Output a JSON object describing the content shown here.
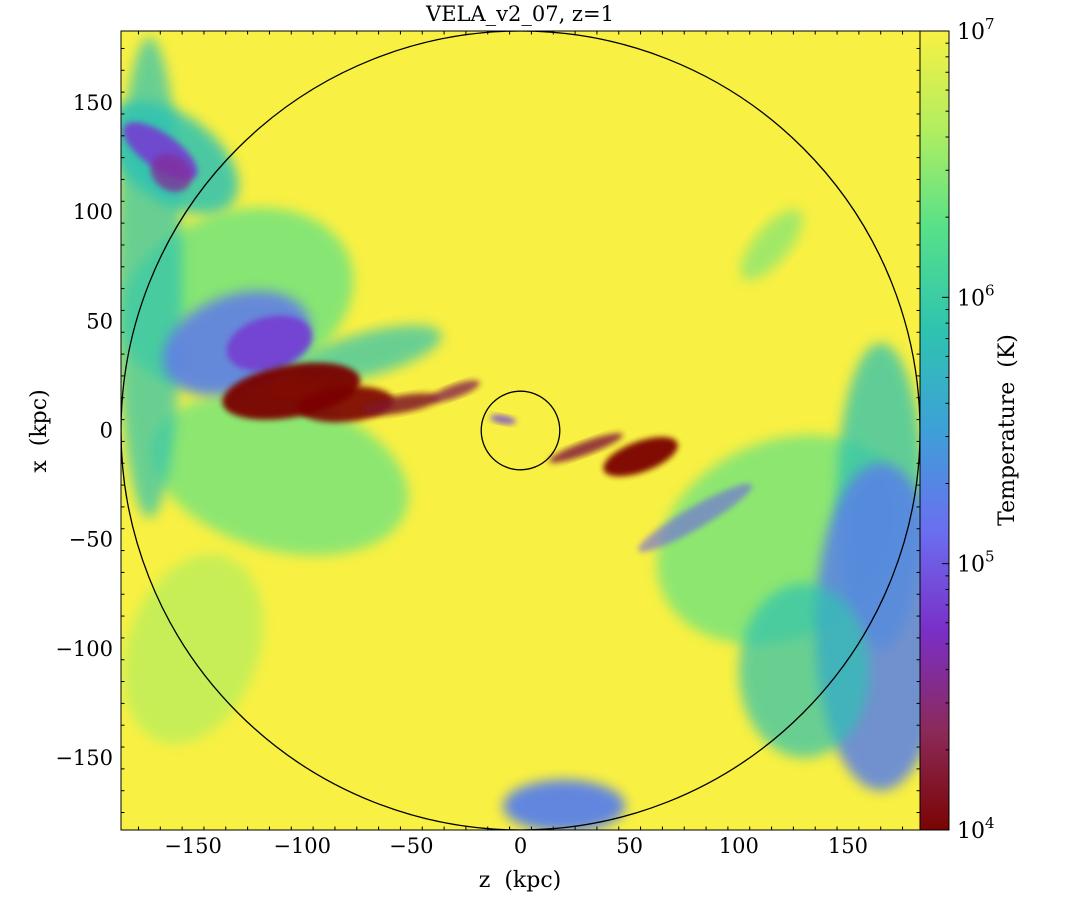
{
  "chart_data": {
    "type": "heatmap",
    "title": "VELA_v2_07, z=1",
    "xlabel": "z  (kpc)",
    "ylabel": "x  (kpc)",
    "xlim": [
      -183,
      183
    ],
    "ylim": [
      -183,
      183
    ],
    "xticks": [
      -150,
      -100,
      -50,
      0,
      50,
      100,
      150
    ],
    "yticks": [
      -150,
      -100,
      -50,
      0,
      50,
      100,
      150
    ],
    "xtick_labels": [
      "−150",
      "−100",
      "−50",
      "0",
      "50",
      "100",
      "150"
    ],
    "ytick_labels": [
      "−150",
      "−100",
      "−50",
      "0",
      "50",
      "100",
      "150"
    ],
    "colorbar": {
      "label": "Temperature  (K)",
      "scale": "log",
      "range": [
        10000,
        10000000
      ],
      "ticks": [
        {
          "base": "10",
          "exp": "4",
          "value": 10000
        },
        {
          "base": "10",
          "exp": "5",
          "value": 100000
        },
        {
          "base": "10",
          "exp": "6",
          "value": 1000000
        },
        {
          "base": "10",
          "exp": "7",
          "value": 10000000
        }
      ],
      "colormap_stops": [
        "#7a0403",
        "#8b2a5a",
        "#7a2fc8",
        "#6a6ff0",
        "#3ea0d8",
        "#2ec3b0",
        "#55e08a",
        "#b0ee60",
        "#f8f043"
      ]
    },
    "circles": [
      {
        "name": "virial-radius",
        "center": [
          0,
          0
        ],
        "radius": 183
      },
      {
        "name": "inner-galaxy",
        "center": [
          0,
          0
        ],
        "radius": 18
      }
    ],
    "background_color": "#f8f043",
    "features": [
      {
        "name": "cold-filament-left",
        "z": -105,
        "x": 18,
        "temperature": 10000
      },
      {
        "name": "cold-blob-right",
        "z": 55,
        "x": -12,
        "temperature": 10000
      },
      {
        "name": "cool-stream-top-left",
        "z": -165,
        "x": 125,
        "temperature": 30000
      },
      {
        "name": "warm-region-bottom-right",
        "z": 165,
        "x": -90,
        "temperature": 300000
      },
      {
        "name": "warm-blob-bottom",
        "z": 20,
        "x": -172,
        "temperature": 400000
      }
    ]
  }
}
